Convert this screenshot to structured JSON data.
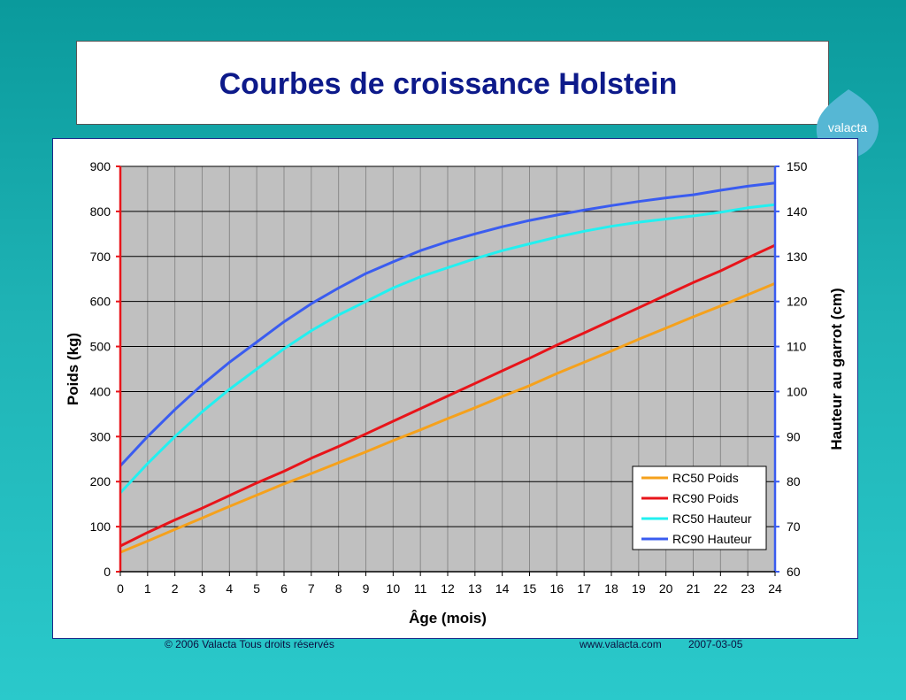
{
  "header": {
    "title": "Courbes de croissance Holstein",
    "logo_text": "valacta"
  },
  "footer": {
    "copyright": "© 2006 Valacta  Tous droits réservés",
    "website": "www.valacta.com",
    "date": "2007-03-05"
  },
  "colors": {
    "title": "#0d1a8a",
    "logo": "#56b7d4",
    "plot_background": "#c0c0c0",
    "rc50_poids": "#f5a11c",
    "rc90_poids": "#e8141a",
    "rc50_hauteur": "#22f0f0",
    "rc90_hauteur": "#3a5cf0"
  },
  "chart_data": {
    "type": "line",
    "title": "Courbes de croissance Holstein",
    "xlabel": "Âge (mois)",
    "ylabel": "Poids (kg)",
    "y2label": "Hauteur au garrot (cm)",
    "x": [
      0,
      1,
      2,
      3,
      4,
      5,
      6,
      7,
      8,
      9,
      10,
      11,
      12,
      13,
      14,
      15,
      16,
      17,
      18,
      19,
      20,
      21,
      22,
      23,
      24
    ],
    "xlim": [
      0,
      24
    ],
    "ylim": [
      0,
      900
    ],
    "y2lim": [
      60,
      150
    ],
    "yticks": [
      0,
      100,
      200,
      300,
      400,
      500,
      600,
      700,
      800,
      900
    ],
    "y2ticks": [
      60,
      70,
      80,
      90,
      100,
      110,
      120,
      130,
      140,
      150
    ],
    "grid": true,
    "legend_position": "bottom-right",
    "series": [
      {
        "name": "RC50 Poids",
        "axis": "left",
        "color": "#f5a11c",
        "values": [
          43,
          68,
          94,
          119,
          145,
          170,
          195,
          218,
          242,
          266,
          291,
          315,
          340,
          364,
          389,
          413,
          440,
          465,
          490,
          516,
          541,
          566,
          590,
          615,
          640
        ]
      },
      {
        "name": "RC90 Poids",
        "axis": "left",
        "color": "#e8141a",
        "values": [
          57,
          87,
          115,
          141,
          169,
          197,
          223,
          252,
          278,
          306,
          334,
          362,
          390,
          418,
          446,
          474,
          503,
          530,
          558,
          586,
          614,
          642,
          668,
          697,
          725
        ]
      },
      {
        "name": "RC50 Hauteur",
        "axis": "right",
        "color": "#22f0f0",
        "values": [
          77.5,
          84,
          90,
          95.5,
          100.5,
          105,
          109.5,
          113.5,
          117,
          120,
          123,
          125.5,
          127.5,
          129.5,
          131.3,
          132.8,
          134.3,
          135.6,
          136.7,
          137.6,
          138.3,
          139,
          139.8,
          140.8,
          141.5
        ]
      },
      {
        "name": "RC90 Hauteur",
        "axis": "right",
        "color": "#3a5cf0",
        "values": [
          83.5,
          90,
          96,
          101.5,
          106.5,
          111,
          115.5,
          119.5,
          123,
          126.2,
          128.8,
          131.3,
          133.3,
          135,
          136.6,
          138,
          139.2,
          140.3,
          141.3,
          142.2,
          143,
          143.7,
          144.7,
          145.6,
          146.3
        ]
      }
    ]
  }
}
